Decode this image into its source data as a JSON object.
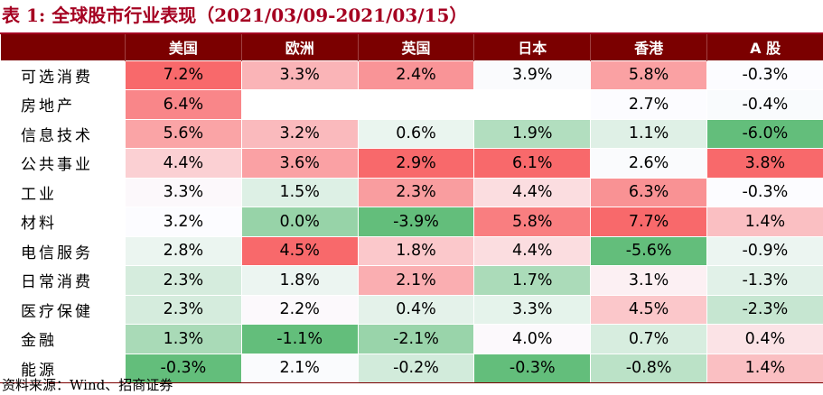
{
  "title": "表 1:  全球股市行业表现（2021/03/09-2021/03/15）",
  "source": "资料来源：Wind、招商证券",
  "columns": [
    "",
    "美国",
    "欧洲",
    "英国",
    "日本",
    "香港",
    "A 股"
  ],
  "rows": [
    {
      "label": "可选消费",
      "values": [
        "7.2%",
        "3.3%",
        "2.4%",
        "3.9%",
        "5.8%",
        "-0.3%"
      ]
    },
    {
      "label": "房地产",
      "values": [
        "6.4%",
        "",
        "",
        "",
        "2.7%",
        "-0.4%"
      ]
    },
    {
      "label": "信息技术",
      "values": [
        "5.6%",
        "3.2%",
        "0.6%",
        "1.9%",
        "1.1%",
        "-6.0%"
      ]
    },
    {
      "label": "公共事业",
      "values": [
        "4.4%",
        "3.6%",
        "2.9%",
        "6.1%",
        "2.6%",
        "3.8%"
      ]
    },
    {
      "label": "工业",
      "values": [
        "3.3%",
        "1.5%",
        "2.3%",
        "4.4%",
        "6.3%",
        "-0.3%"
      ]
    },
    {
      "label": "材料",
      "values": [
        "3.2%",
        "0.0%",
        "-3.9%",
        "5.8%",
        "7.7%",
        "1.4%"
      ]
    },
    {
      "label": "电信服务",
      "values": [
        "2.8%",
        "4.5%",
        "1.8%",
        "4.4%",
        "-5.6%",
        "-0.9%"
      ]
    },
    {
      "label": "日常消费",
      "values": [
        "2.3%",
        "1.8%",
        "2.1%",
        "1.7%",
        "3.1%",
        "-1.3%"
      ]
    },
    {
      "label": "医疗保健",
      "values": [
        "2.3%",
        "2.2%",
        "0.4%",
        "3.3%",
        "4.5%",
        "-2.3%"
      ]
    },
    {
      "label": "金融",
      "values": [
        "1.3%",
        "-1.1%",
        "-2.1%",
        "4.0%",
        "0.7%",
        "0.4%"
      ]
    },
    {
      "label": "能源",
      "values": [
        "-0.3%",
        "2.1%",
        "-0.2%",
        "-0.3%",
        "-0.8%",
        "1.4%"
      ]
    }
  ],
  "colors": {
    "title": "#a50021",
    "header_bg": "#7b0000",
    "header_text": "#ffffff",
    "max_red": "#f8696b",
    "mid_white": "#fcfcff",
    "min_green": "#63be7b"
  }
}
